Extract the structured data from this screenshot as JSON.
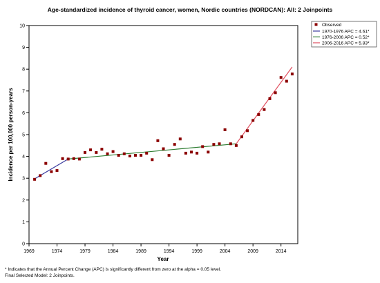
{
  "chart_data": {
    "type": "scatter",
    "title": "Age-standardized incidence of thyroid cancer, women, Nordic countries (NORDCAN): All: 2 Joinpoints",
    "xlabel": "Year",
    "ylabel": "Incidence per 100,000 person-years",
    "xlim": [
      1969,
      2017
    ],
    "ylim": [
      0,
      10
    ],
    "x_ticks": [
      1969,
      1974,
      1979,
      1984,
      1989,
      1994,
      1999,
      2004,
      2009,
      2014
    ],
    "y_ticks": [
      0,
      1,
      2,
      3,
      4,
      5,
      6,
      7,
      8,
      9,
      10
    ],
    "grid": false,
    "legend_position": "top-right",
    "observed": {
      "name": "Observed",
      "color": "#8b0000",
      "x": [
        1970,
        1971,
        1972,
        1973,
        1974,
        1975,
        1976,
        1977,
        1978,
        1979,
        1980,
        1981,
        1982,
        1983,
        1984,
        1985,
        1986,
        1987,
        1988,
        1989,
        1990,
        1991,
        1992,
        1993,
        1994,
        1995,
        1996,
        1997,
        1998,
        1999,
        2000,
        2001,
        2002,
        2003,
        2004,
        2005,
        2006,
        2007,
        2008,
        2009,
        2010,
        2011,
        2012,
        2013,
        2014,
        2015,
        2016
      ],
      "y": [
        2.95,
        3.12,
        3.68,
        3.3,
        3.35,
        3.9,
        3.88,
        3.9,
        3.88,
        4.18,
        4.3,
        4.18,
        4.33,
        4.12,
        4.22,
        4.05,
        4.12,
        4.02,
        4.05,
        4.05,
        4.15,
        3.85,
        4.72,
        4.35,
        4.05,
        4.55,
        4.8,
        4.15,
        4.2,
        4.15,
        4.45,
        4.2,
        4.55,
        4.58,
        5.22,
        4.58,
        4.5,
        4.9,
        5.18,
        5.65,
        5.92,
        6.15,
        6.65,
        6.92,
        7.62,
        7.45,
        7.78
      ]
    },
    "series": [
      {
        "name": "1970-1976 APC = 4.61*",
        "color": "#3a3a9e",
        "x": [
          1970,
          1976
        ],
        "y": [
          2.97,
          3.88
        ]
      },
      {
        "name": "1976-2006 APC = 0.52*",
        "color": "#2e7d32",
        "x": [
          1976,
          2006
        ],
        "y": [
          3.88,
          4.58
        ]
      },
      {
        "name": "2006-2016 APC = 5.83*",
        "color": "#e05060",
        "x": [
          2006,
          2016
        ],
        "y": [
          4.58,
          8.1
        ]
      }
    ]
  },
  "footnotes": [
    "* Indicates that the Annual Percent Change (APC) is significantly different from zero at the alpha = 0.05 level.",
    "Final Selected Model: 2 Joinpoints."
  ]
}
